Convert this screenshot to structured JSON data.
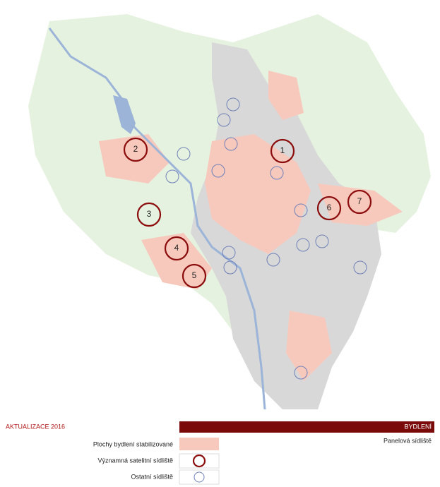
{
  "header": {
    "update": "AKTUALIZACE  2016",
    "section": "BYDLENÍ",
    "subsection": "Panelová sídliště"
  },
  "legend": [
    {
      "label": "Plochy bydlení stabilizované"
    },
    {
      "label": "Významná satelitní sídliště"
    },
    {
      "label": "Ostatní sídliště"
    }
  ],
  "map": {
    "major_estates": [
      "1",
      "2",
      "3",
      "4",
      "5",
      "6",
      "7"
    ]
  }
}
